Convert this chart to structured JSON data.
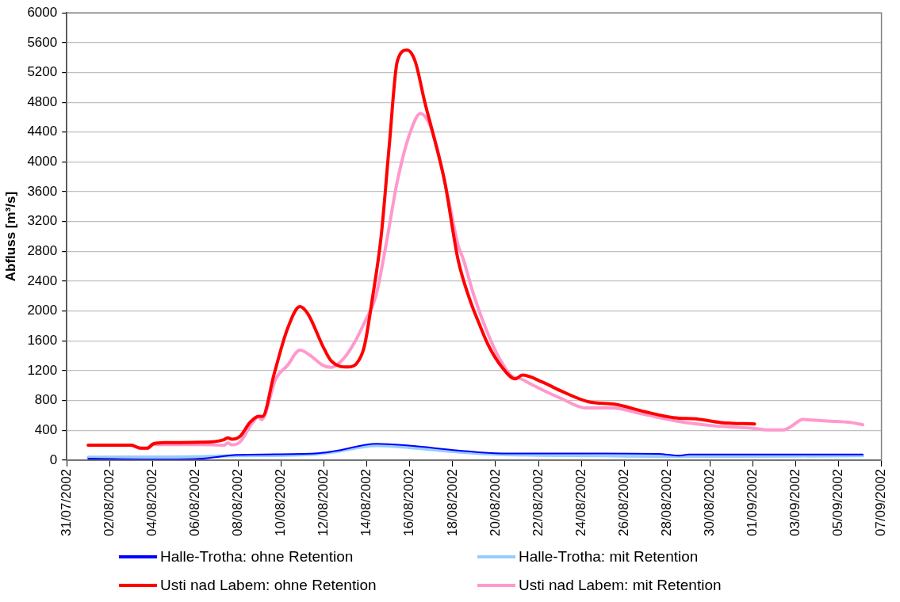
{
  "chart_data": {
    "type": "line",
    "ylabel": "Abfluss [m³/s]",
    "xlim": [
      "2002-07-31",
      "2002-09-07"
    ],
    "xticks": [
      {
        "value": "2002-07-31",
        "label": "31/07/2002"
      },
      {
        "value": "2002-08-02",
        "label": "02/08/2002"
      },
      {
        "value": "2002-08-04",
        "label": "04/08/2002"
      },
      {
        "value": "2002-08-06",
        "label": "06/08/2002"
      },
      {
        "value": "2002-08-08",
        "label": "08/08/2002"
      },
      {
        "value": "2002-08-10",
        "label": "10/08/2002"
      },
      {
        "value": "2002-08-12",
        "label": "12/08/2002"
      },
      {
        "value": "2002-08-14",
        "label": "14/08/2002"
      },
      {
        "value": "2002-08-16",
        "label": "16/08/2002"
      },
      {
        "value": "2002-08-18",
        "label": "18/08/2002"
      },
      {
        "value": "2002-08-20",
        "label": "20/08/2002"
      },
      {
        "value": "2002-08-22",
        "label": "22/08/2002"
      },
      {
        "value": "2002-08-24",
        "label": "24/08/2002"
      },
      {
        "value": "2002-08-26",
        "label": "26/08/2002"
      },
      {
        "value": "2002-08-28",
        "label": "28/08/2002"
      },
      {
        "value": "2002-08-30",
        "label": "30/08/2002"
      },
      {
        "value": "2002-09-01",
        "label": "01/09/2002"
      },
      {
        "value": "2002-09-03",
        "label": "03/09/2002"
      },
      {
        "value": "2002-09-05",
        "label": "05/09/2002"
      },
      {
        "value": "2002-09-07",
        "label": "07/09/2002"
      }
    ],
    "ylim": [
      0,
      6000
    ],
    "yticks": [
      0,
      400,
      800,
      1200,
      1600,
      2000,
      2400,
      2800,
      3200,
      3600,
      4000,
      4400,
      4800,
      5200,
      5600,
      6000
    ],
    "grid": "y",
    "legend": "bottom",
    "marker": "none",
    "line_style": "solid",
    "series": [
      {
        "name": "Halle-Trotha: ohne Retention",
        "color": "#0000ff",
        "x": [
          "2002-08-01T00:00",
          "2002-08-04T12:00",
          "2002-08-06T07:00",
          "2002-08-07T23:00",
          "2002-08-11T14:00",
          "2002-08-12T11:00",
          "2002-08-14T11:00",
          "2002-08-15T23:00",
          "2002-08-18T06:00",
          "2002-08-20T07:00",
          "2002-08-24T21:00",
          "2002-08-27T14:00",
          "2002-08-28T14:00",
          "2002-08-29T00:00",
          "2002-09-06T03:00"
        ],
        "values": [
          20,
          10,
          20,
          70,
          90,
          120,
          220,
          195,
          130,
          90,
          90,
          85,
          60,
          75,
          75
        ]
      },
      {
        "name": "Halle-Trotha: mit Retention",
        "color": "#99ccff",
        "x": [
          "2002-08-01T00:00",
          "2002-08-06T07:00",
          "2002-08-07T23:00",
          "2002-08-11T14:00",
          "2002-08-12T11:00",
          "2002-08-14T11:00",
          "2002-08-15T23:00",
          "2002-08-18T06:00",
          "2002-08-20T07:00",
          "2002-08-24T21:00",
          "2002-08-28T14:00",
          "2002-09-06T03:00"
        ],
        "values": [
          40,
          48,
          60,
          80,
          110,
          195,
          170,
          110,
          75,
          60,
          50,
          60
        ]
      },
      {
        "name": "Usti nad Labem: ohne Retention",
        "color": "#ff0000",
        "x": [
          "2002-08-01T00:00",
          "2002-08-03T00:00",
          "2002-08-03T11:00",
          "2002-08-03T18:00",
          "2002-08-04T01:00",
          "2002-08-04T15:00",
          "2002-08-06T07:00",
          "2002-08-07T08:00",
          "2002-08-07T12:00",
          "2002-08-07T17:00",
          "2002-08-08T02:00",
          "2002-08-08T13:00",
          "2002-08-08T23:00",
          "2002-08-09T03:00",
          "2002-08-09T16:00",
          "2002-08-10T07:00",
          "2002-08-10T21:00",
          "2002-08-11T06:00",
          "2002-08-11T23:00",
          "2002-08-12T08:00",
          "2002-08-13T03:00",
          "2002-08-13T12:00",
          "2002-08-13T21:00",
          "2002-08-14T06:00",
          "2002-08-14T16:00",
          "2002-08-15T01:00",
          "2002-08-15T10:00",
          "2002-08-15T21:00",
          "2002-08-16T06:00",
          "2002-08-16T17:00",
          "2002-08-17T02:00",
          "2002-08-17T15:00",
          "2002-08-18T06:00",
          "2002-08-18T19:00",
          "2002-08-19T06:00",
          "2002-08-19T16:00",
          "2002-08-20T07:00",
          "2002-08-20T22:00",
          "2002-08-21T06:00",
          "2002-08-22T04:00",
          "2002-08-23T01:00",
          "2002-08-24T09:00",
          "2002-08-25T13:00",
          "2002-08-26T23:00",
          "2002-08-28T07:00",
          "2002-08-29T11:00",
          "2002-08-30T12:00",
          "2002-09-01T02:00"
        ],
        "values": [
          200,
          200,
          160,
          160,
          220,
          235,
          240,
          275,
          300,
          280,
          320,
          505,
          590,
          585,
          1150,
          1760,
          2060,
          1960,
          1520,
          1330,
          1250,
          1290,
          1520,
          2160,
          3010,
          4220,
          5350,
          5500,
          5350,
          4790,
          4380,
          3740,
          2690,
          2160,
          1820,
          1540,
          1250,
          1090,
          1140,
          1050,
          930,
          780,
          750,
          650,
          570,
          550,
          505,
          485
        ]
      },
      {
        "name": "Usti nad Labem: mit Retention",
        "color": "#ff99cc",
        "x": [
          "2002-08-01T00:00",
          "2002-08-03T00:00",
          "2002-08-03T11:00",
          "2002-08-03T18:00",
          "2002-08-04T01:00",
          "2002-08-06T07:00",
          "2002-08-07T08:00",
          "2002-08-07T12:00",
          "2002-08-07T17:00",
          "2002-08-08T02:00",
          "2002-08-08T15:00",
          "2002-08-08T23:00",
          "2002-08-09T02:00",
          "2002-08-09T18:00",
          "2002-08-10T07:00",
          "2002-08-10T21:00",
          "2002-08-11T08:00",
          "2002-08-11T23:00",
          "2002-08-12T08:00",
          "2002-08-12T21:00",
          "2002-08-13T09:00",
          "2002-08-13T21:00",
          "2002-08-14T10:00",
          "2002-08-14T22:00",
          "2002-08-15T10:00",
          "2002-08-16T00:00",
          "2002-08-16T12:00",
          "2002-08-17T02:00",
          "2002-08-17T18:00",
          "2002-08-18T06:00",
          "2002-08-18T12:00",
          "2002-08-19T00:00",
          "2002-08-19T19:00",
          "2002-08-20T07:00",
          "2002-08-20T20:00",
          "2002-08-21T02:00",
          "2002-08-21T14:00",
          "2002-08-22T10:00",
          "2002-08-23T01:00",
          "2002-08-24T05:00",
          "2002-08-25T10:00",
          "2002-08-26T20:00",
          "2002-08-28T10:00",
          "2002-08-30T05:00",
          "2002-09-01T02:00",
          "2002-09-01T17:00",
          "2002-09-02T10:00",
          "2002-09-02T18:00",
          "2002-09-03T08:00",
          "2002-09-04T11:00",
          "2002-09-05T14:00",
          "2002-09-06T03:00"
        ],
        "values": [
          200,
          200,
          155,
          155,
          210,
          210,
          200,
          230,
          205,
          245,
          485,
          585,
          540,
          1090,
          1270,
          1475,
          1410,
          1270,
          1245,
          1350,
          1555,
          1840,
          2200,
          2930,
          3740,
          4380,
          4650,
          4380,
          3575,
          2890,
          2690,
          2200,
          1595,
          1310,
          1110,
          1100,
          1030,
          910,
          830,
          700,
          700,
          620,
          525,
          460,
          425,
          405,
          405,
          445,
          545,
          525,
          505,
          475
        ]
      }
    ]
  }
}
